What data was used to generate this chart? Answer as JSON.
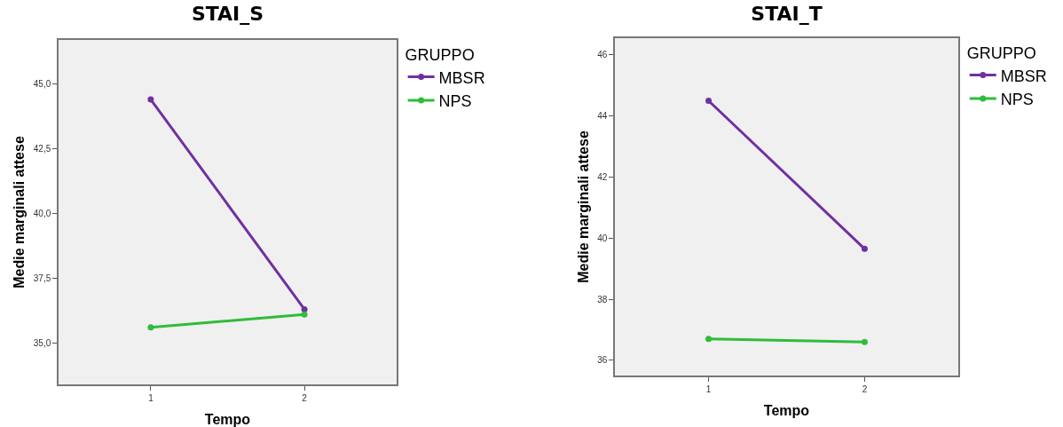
{
  "chart_data": [
    {
      "type": "line",
      "title": "STAI_S",
      "xlabel": "Tempo",
      "ylabel": "Medie marginali attese",
      "legend_title": "GRUPPO",
      "categories": [
        "1",
        "2"
      ],
      "ylim": [
        33.4,
        46.7
      ],
      "yticks": [
        {
          "value": 35,
          "label": "35,0"
        },
        {
          "value": 37.5,
          "label": "37,5"
        },
        {
          "value": 40,
          "label": "40,0"
        },
        {
          "value": 42.5,
          "label": "42,5"
        },
        {
          "value": 45,
          "label": "45,0"
        }
      ],
      "grid": false,
      "legend": "right",
      "marker": "circle",
      "line_style": "solid",
      "series": [
        {
          "name": "MBSR",
          "color": "#7030a0",
          "values": [
            44.4,
            36.3
          ]
        },
        {
          "name": "NPS",
          "color": "#2ebd3a",
          "values": [
            35.6,
            36.1
          ]
        }
      ]
    },
    {
      "type": "line",
      "title": "STAI_T",
      "xlabel": "Tempo",
      "ylabel": "Medie marginali attese",
      "legend_title": "GRUPPO",
      "categories": [
        "1",
        "2"
      ],
      "ylim": [
        35.5,
        46.55
      ],
      "yticks": [
        36,
        38,
        40,
        42,
        44,
        46
      ],
      "grid": false,
      "legend": "right",
      "marker": "circle",
      "line_style": "solid",
      "series": [
        {
          "name": "MBSR",
          "color": "#7030a0",
          "values": [
            44.5,
            39.65
          ]
        },
        {
          "name": "NPS",
          "color": "#2ebd3a",
          "values": [
            36.7,
            36.6
          ]
        }
      ]
    }
  ]
}
